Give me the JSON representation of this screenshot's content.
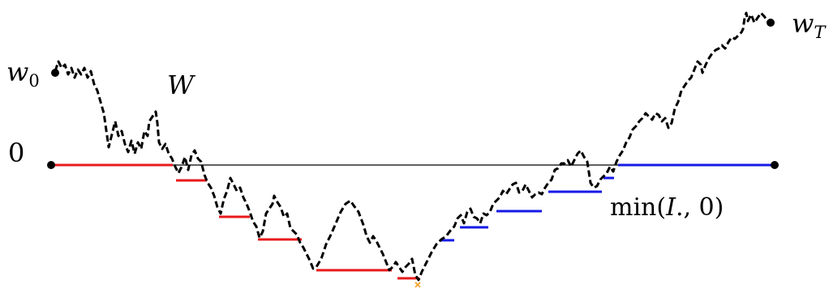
{
  "labels": {
    "w0_main": "w",
    "w0_sub": "0",
    "wT_main": "w",
    "wT_sub": "T",
    "W": "W",
    "zero": "0",
    "min_prefix": "min(",
    "min_var": "I",
    "min_suffix": "., 0)"
  },
  "colors": {
    "path": "#000000",
    "axis": "#000000",
    "red_segments": "#e8191b",
    "blue_segments": "#1519e6",
    "minimum_marker": "#f2a22b"
  }
}
